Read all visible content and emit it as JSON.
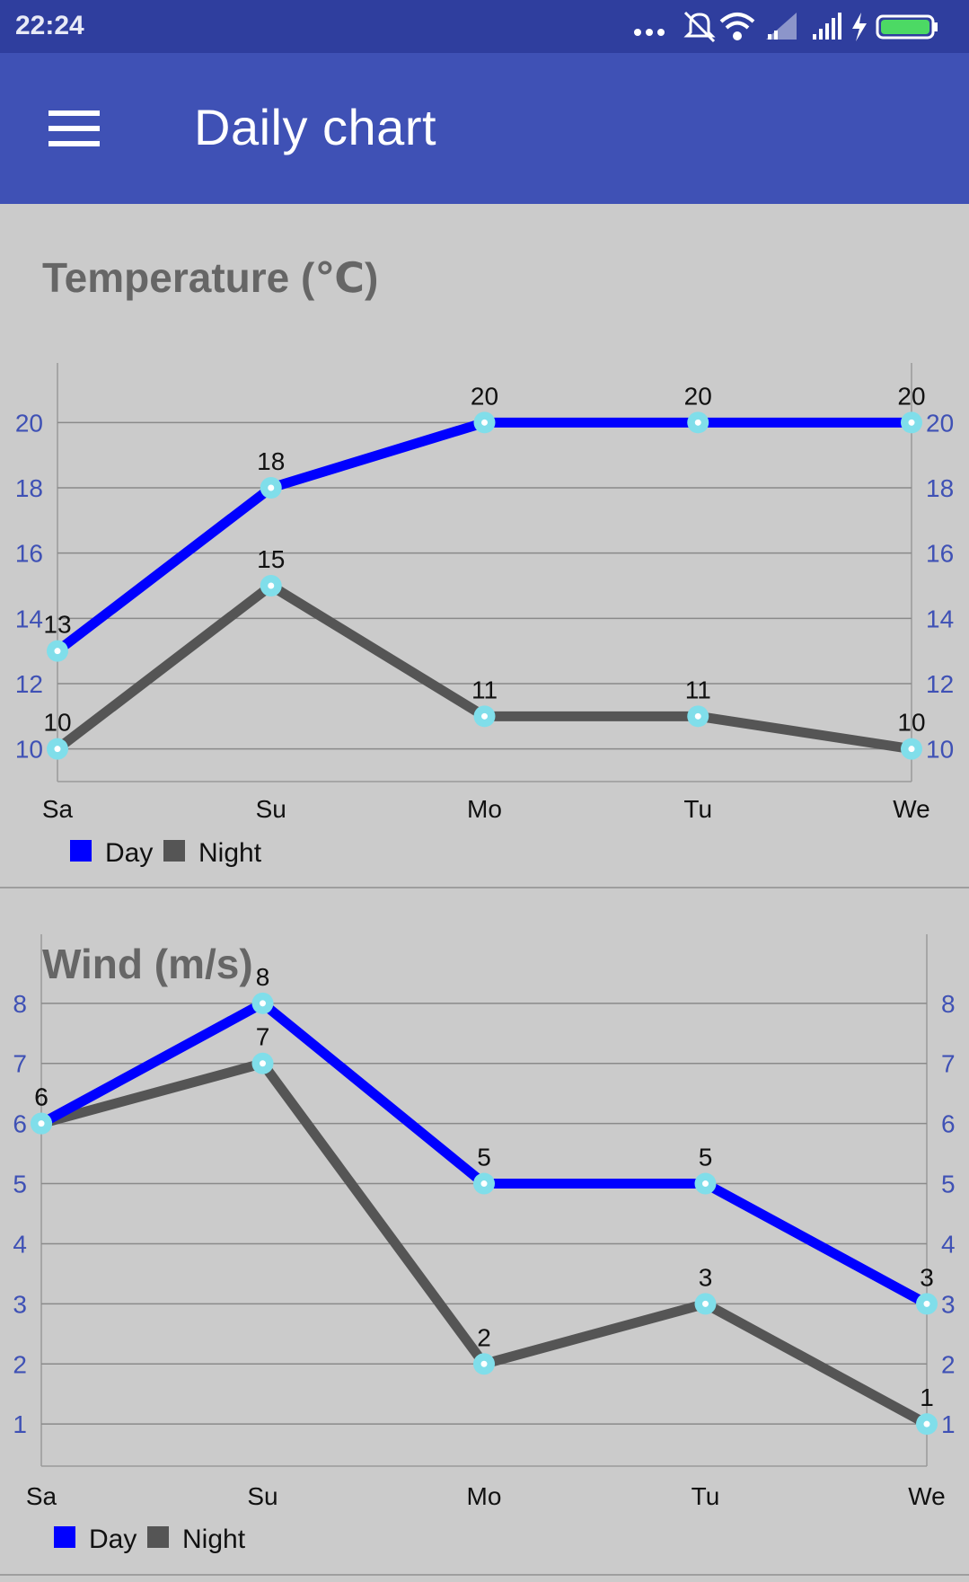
{
  "status_bar": {
    "time": "22:24",
    "icons": [
      "more-dots-icon",
      "mute-icon",
      "wifi-icon",
      "signal-icon",
      "signal-icon",
      "charging-icon",
      "battery-icon"
    ]
  },
  "app_bar": {
    "title": "Daily chart",
    "menu_icon": "hamburger-menu-icon",
    "color": "#3f51b5"
  },
  "colors": {
    "day": "#0000ff",
    "night": "#555555",
    "point": "#80deea",
    "axis_labels": "#3f51b5"
  },
  "legend": {
    "day": "Day",
    "night": "Night"
  },
  "chart_data": [
    {
      "type": "line",
      "title": "Temperature (℃)",
      "categories": [
        "Sa",
        "Su",
        "Mo",
        "Tu",
        "We"
      ],
      "y_ticks": [
        10,
        12,
        14,
        16,
        18,
        20
      ],
      "ylim": [
        9,
        21
      ],
      "grid": true,
      "legend": "bottom-left",
      "series": [
        {
          "name": "Day",
          "values": [
            13,
            18,
            20,
            20,
            20
          ]
        },
        {
          "name": "Night",
          "values": [
            10,
            15,
            11,
            11,
            10
          ]
        }
      ]
    },
    {
      "type": "line",
      "title": "Wind (m/s)",
      "categories": [
        "Sa",
        "Su",
        "Mo",
        "Tu",
        "We"
      ],
      "y_ticks": [
        1,
        2,
        3,
        4,
        5,
        6,
        7,
        8
      ],
      "ylim": [
        0.3,
        8.7
      ],
      "grid": true,
      "legend": "bottom-left",
      "series": [
        {
          "name": "Day",
          "values": [
            6,
            8,
            5,
            5,
            3
          ]
        },
        {
          "name": "Night",
          "values": [
            6,
            7,
            2,
            3,
            1
          ]
        }
      ]
    }
  ]
}
